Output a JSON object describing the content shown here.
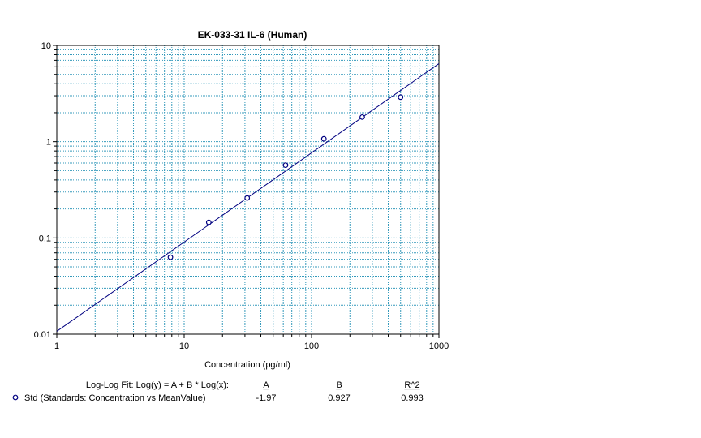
{
  "chart_data": {
    "type": "scatter",
    "title": "EK-033-31 IL-6 (Human)",
    "xlabel": "Concentration (pg/ml)",
    "ylabel": "",
    "x_scale": "log",
    "y_scale": "log",
    "xlim": [
      1,
      1000
    ],
    "ylim": [
      0.01,
      10
    ],
    "x_tick_labels": [
      "1",
      "10",
      "100",
      "1000"
    ],
    "x_tick_values": [
      1,
      10,
      100,
      1000
    ],
    "y_tick_labels": [
      "0.01",
      "0.1",
      "1",
      "10"
    ],
    "y_tick_values": [
      0.01,
      0.1,
      1,
      10
    ],
    "grid": true,
    "grid_color": "#3399bb",
    "marker_color": "#000080",
    "line_color": "#000080",
    "series": [
      {
        "name": "Std (Standards: Concentration vs MeanValue)",
        "points": [
          {
            "x": 7.8,
            "y": 0.063
          },
          {
            "x": 15.6,
            "y": 0.145
          },
          {
            "x": 31.25,
            "y": 0.26
          },
          {
            "x": 62.5,
            "y": 0.57
          },
          {
            "x": 125,
            "y": 1.07
          },
          {
            "x": 250,
            "y": 1.8
          },
          {
            "x": 500,
            "y": 2.9
          }
        ]
      }
    ],
    "fit": {
      "label": "Log-Log Fit: Log(y) = A + B * Log(x):",
      "headers": [
        "A",
        "B",
        "R^2"
      ],
      "values": [
        "-1.97",
        "0.927",
        "0.993"
      ],
      "A": -1.97,
      "B": 0.927,
      "r2": 0.993
    }
  }
}
